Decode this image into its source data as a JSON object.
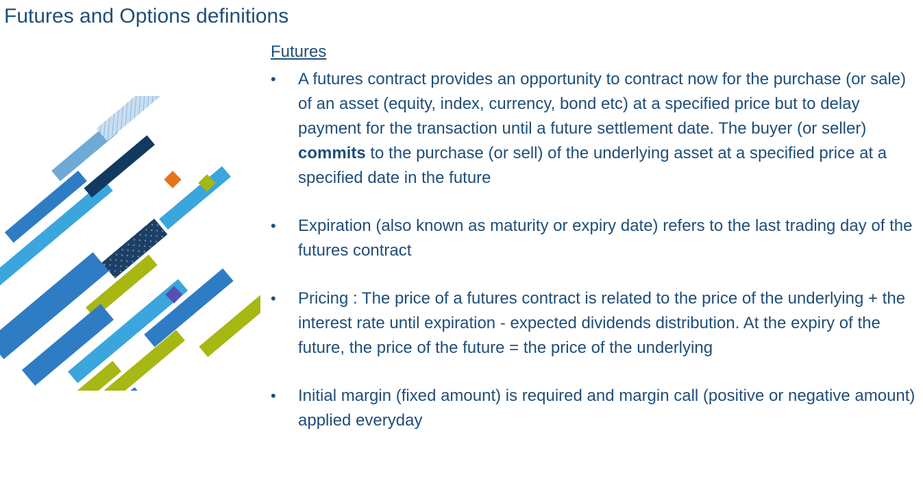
{
  "title": "Futures and Options definitions",
  "section": {
    "heading": "Futures",
    "bullets": [
      {
        "before": "A futures contract provides an opportunity to contract now for the purchase (or sale) of an asset (equity, index, currency, bond etc) at a specified price but to delay payment for the transaction until a future settlement date. The buyer (or seller) ",
        "bold": "commits",
        "after": " to the purchase (or sell) of the underlying asset at a specified price at a specified date in the future"
      },
      {
        "before": "Expiration (also known as maturity or expiry date) refers to the last trading day of the futures contract",
        "bold": "",
        "after": ""
      },
      {
        "before": "Pricing : The price of a futures contract is related to the price of the underlying + the interest rate until expiration - expected dividends distribution. At the expiry of the future, the price of the future = the price of the underlying",
        "bold": "",
        "after": ""
      },
      {
        "before": "Initial margin (fixed amount) is required and margin call (positive or negative amount) applied everyday",
        "bold": "",
        "after": ""
      }
    ]
  },
  "colors": {
    "text": "#1f4e79",
    "light_blue": "#3aa6dd",
    "mid_blue": "#2e7cc4",
    "navy": "#123a5e",
    "lime": "#a7b713",
    "orange": "#e8731a",
    "purple": "#5a4fb0",
    "pale_blue": "#9cc3e4"
  }
}
